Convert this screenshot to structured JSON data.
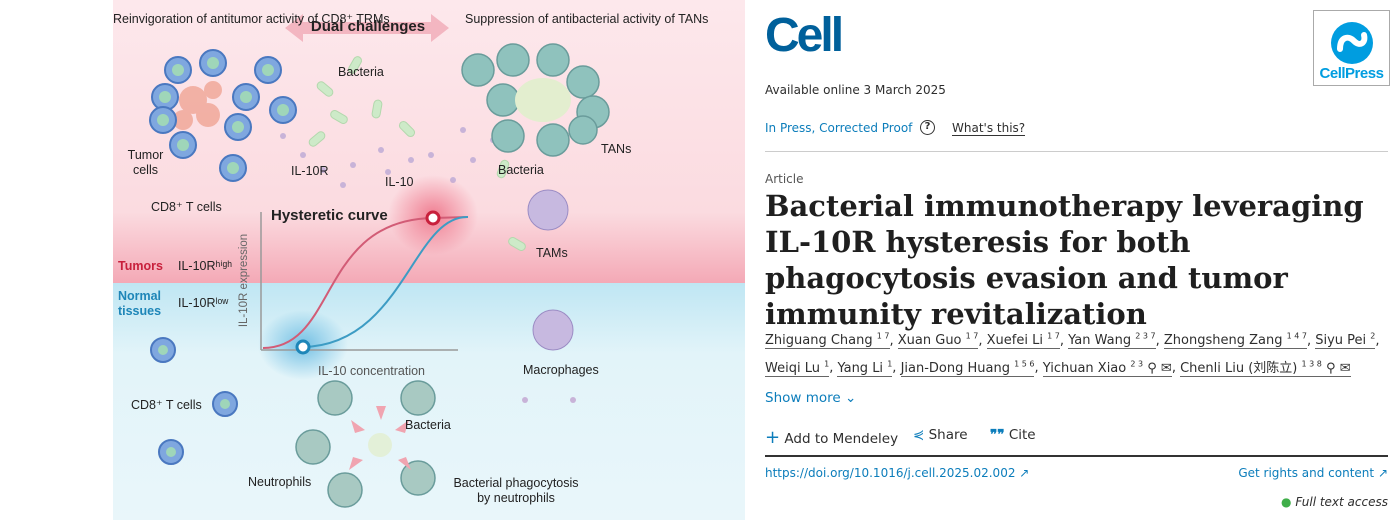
{
  "graphical_abstract": {
    "header_left": "Reinvigoration of antitumor activity of CD8⁺ TRMs",
    "header_center": "Dual challenges",
    "header_right": "Suppression of antibacterial activity of TANs",
    "labels": {
      "bacteria_top": "Bacteria",
      "tumor_cells": "Tumor cells",
      "il10r": "IL-10R",
      "il10": "IL-10",
      "cd8_top": "CD8⁺ T cells",
      "bacteria_tan": "Bacteria",
      "tans": "TANs",
      "tams": "TAMs",
      "hysteretic": "Hysteretic curve",
      "y_axis": "IL-10R expression",
      "x_axis": "IL-10 concentration",
      "tumors": "Tumors",
      "il10r_high": "IL-10Rʰⁱᵍʰ",
      "normal": "Normal tissues",
      "il10r_low": "IL-10Rˡᵒʷ",
      "macrophages": "Macrophages",
      "cd8_bottom": "CD8⁺ T cells",
      "bacteria_bottom": "Bacteria",
      "neutrophils": "Neutrophils",
      "phago": "Bacterial phagocytosis by neutrophils"
    },
    "colors": {
      "tumor_bg": "#fbe3e7",
      "normal_bg": "#d9f0f6",
      "red": "#c8203c",
      "blue": "#1e86b8"
    }
  },
  "article": {
    "journal": "Cell",
    "publisher": "CellPress",
    "available": "Available online 3 March 2025",
    "status": "In Press, Corrected Proof",
    "help_icon": "?",
    "whats_this": "What's this?",
    "type": "Article",
    "title": "Bacterial immunotherapy leveraging IL-10R hysteresis for both phagocytosis evasion and tumor immunity revitalization",
    "authors": [
      {
        "name": "Zhiguang Chang",
        "sup": "1 7"
      },
      {
        "name": "Xuan Guo",
        "sup": "1 7"
      },
      {
        "name": "Xuefei Li",
        "sup": "1 7"
      },
      {
        "name": "Yan Wang",
        "sup": "2 3 7"
      },
      {
        "name": "Zhongsheng Zang",
        "sup": "1 4 7"
      },
      {
        "name": "Siyu Pei",
        "sup": "2"
      },
      {
        "name": "Weiqi Lu",
        "sup": "1"
      },
      {
        "name": "Yang Li",
        "sup": "1"
      },
      {
        "name": "Jian-Dong Huang",
        "sup": "1 5 6"
      },
      {
        "name": "Yichuan Xiao",
        "sup": "2 3"
      },
      {
        "name": "Chenli Liu (刘陈立)",
        "sup": "1 3 8"
      }
    ],
    "show_more": "Show more",
    "add_mendeley": "Add to Mendeley",
    "share": "Share",
    "cite": "Cite",
    "doi": "https://doi.org/10.1016/j.cell.2025.02.002",
    "rights": "Get rights and content",
    "access": "Full text access",
    "access_color": "#3fae49"
  }
}
